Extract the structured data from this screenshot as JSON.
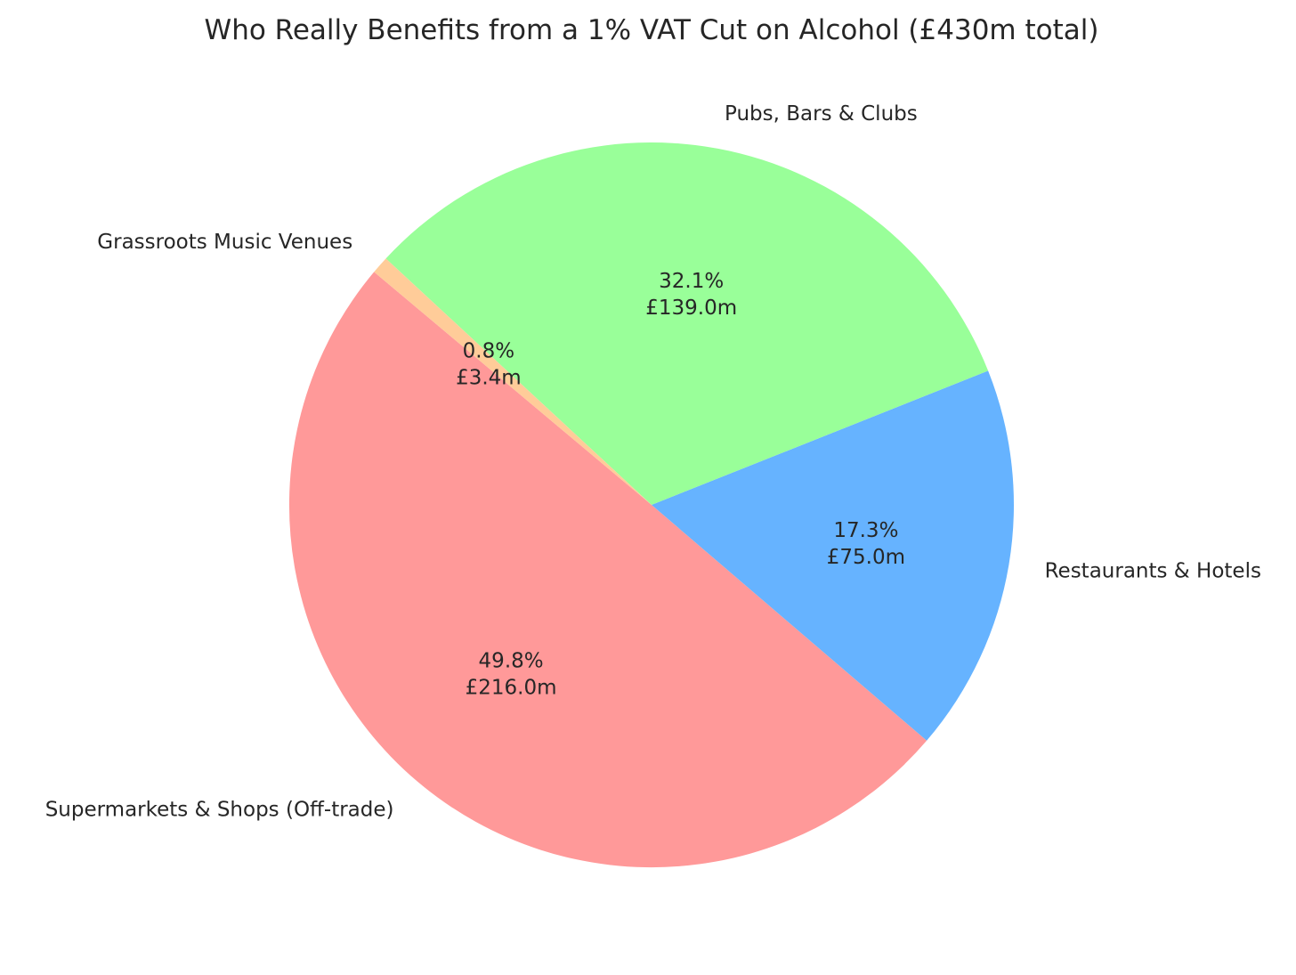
{
  "chart_data": {
    "type": "pie",
    "title": "Who Really Benefits from a 1% VAT Cut on Alcohol (£430m total)",
    "slices": [
      {
        "label": "Supermarkets & Shops (Off-trade)",
        "value": 216.0,
        "percent_label": "49.8%",
        "value_label": "£216.0m",
        "color": "#ff9999"
      },
      {
        "label": "Restaurants & Hotels",
        "value": 75.0,
        "percent_label": "17.3%",
        "value_label": "£75.0m",
        "color": "#66b3ff"
      },
      {
        "label": "Pubs, Bars & Clubs",
        "value": 139.0,
        "percent_label": "32.1%",
        "value_label": "£139.0m",
        "color": "#99ff99"
      },
      {
        "label": "Grassroots Music Venues",
        "value": 3.4,
        "percent_label": "0.8%",
        "value_label": "£3.4m",
        "color": "#ffcc99"
      }
    ],
    "start_angle_deg": 140,
    "direction": "counterclockwise"
  }
}
